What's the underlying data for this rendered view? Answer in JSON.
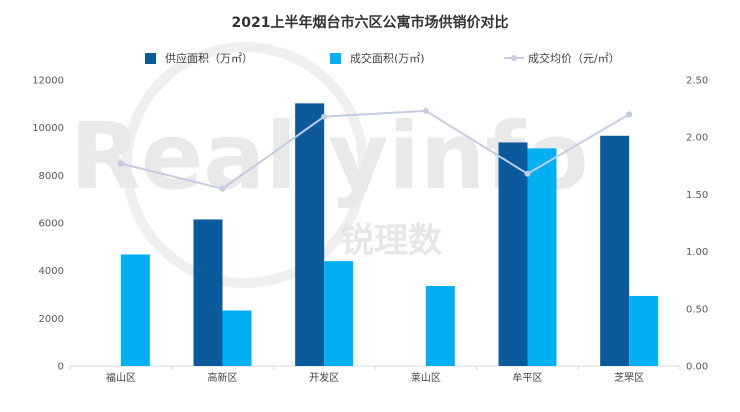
{
  "chart_data": {
    "type": "bar",
    "title": "2021上半年烟台市六区公寓市场供销价对比",
    "categories": [
      "福山区",
      "高新区",
      "开发区",
      "莱山区",
      "牟平区",
      "芝罘区"
    ],
    "series": [
      {
        "name": "供应面积（万㎡）",
        "kind": "bar",
        "axis": "left",
        "color": "#0a5a9c",
        "values": [
          null,
          6150,
          11020,
          null,
          9380,
          9660
        ]
      },
      {
        "name": "成交面积(万㎡)",
        "kind": "bar",
        "axis": "left",
        "color": "#00b0f0",
        "values": [
          4680,
          2330,
          4400,
          3360,
          9130,
          2940
        ]
      },
      {
        "name": "成交均价（元/㎡）",
        "kind": "line",
        "axis": "right",
        "color": "#c3cce2",
        "values": [
          1.77,
          1.55,
          2.18,
          2.23,
          1.68,
          2.2
        ]
      }
    ],
    "left_axis": {
      "min": 0,
      "max": 12000,
      "ticks": [
        "0",
        "2000",
        "4000",
        "6000",
        "8000",
        "10000",
        "12000"
      ]
    },
    "right_axis": {
      "min": 0,
      "max": 2.5,
      "ticks": [
        "0.00",
        "0.50",
        "1.00",
        "1.50",
        "2.00",
        "2.50"
      ]
    },
    "legend_position": "top",
    "grid": false
  },
  "watermark": {
    "text_en": "Reallyinfo",
    "text_cn": "锐理数"
  }
}
